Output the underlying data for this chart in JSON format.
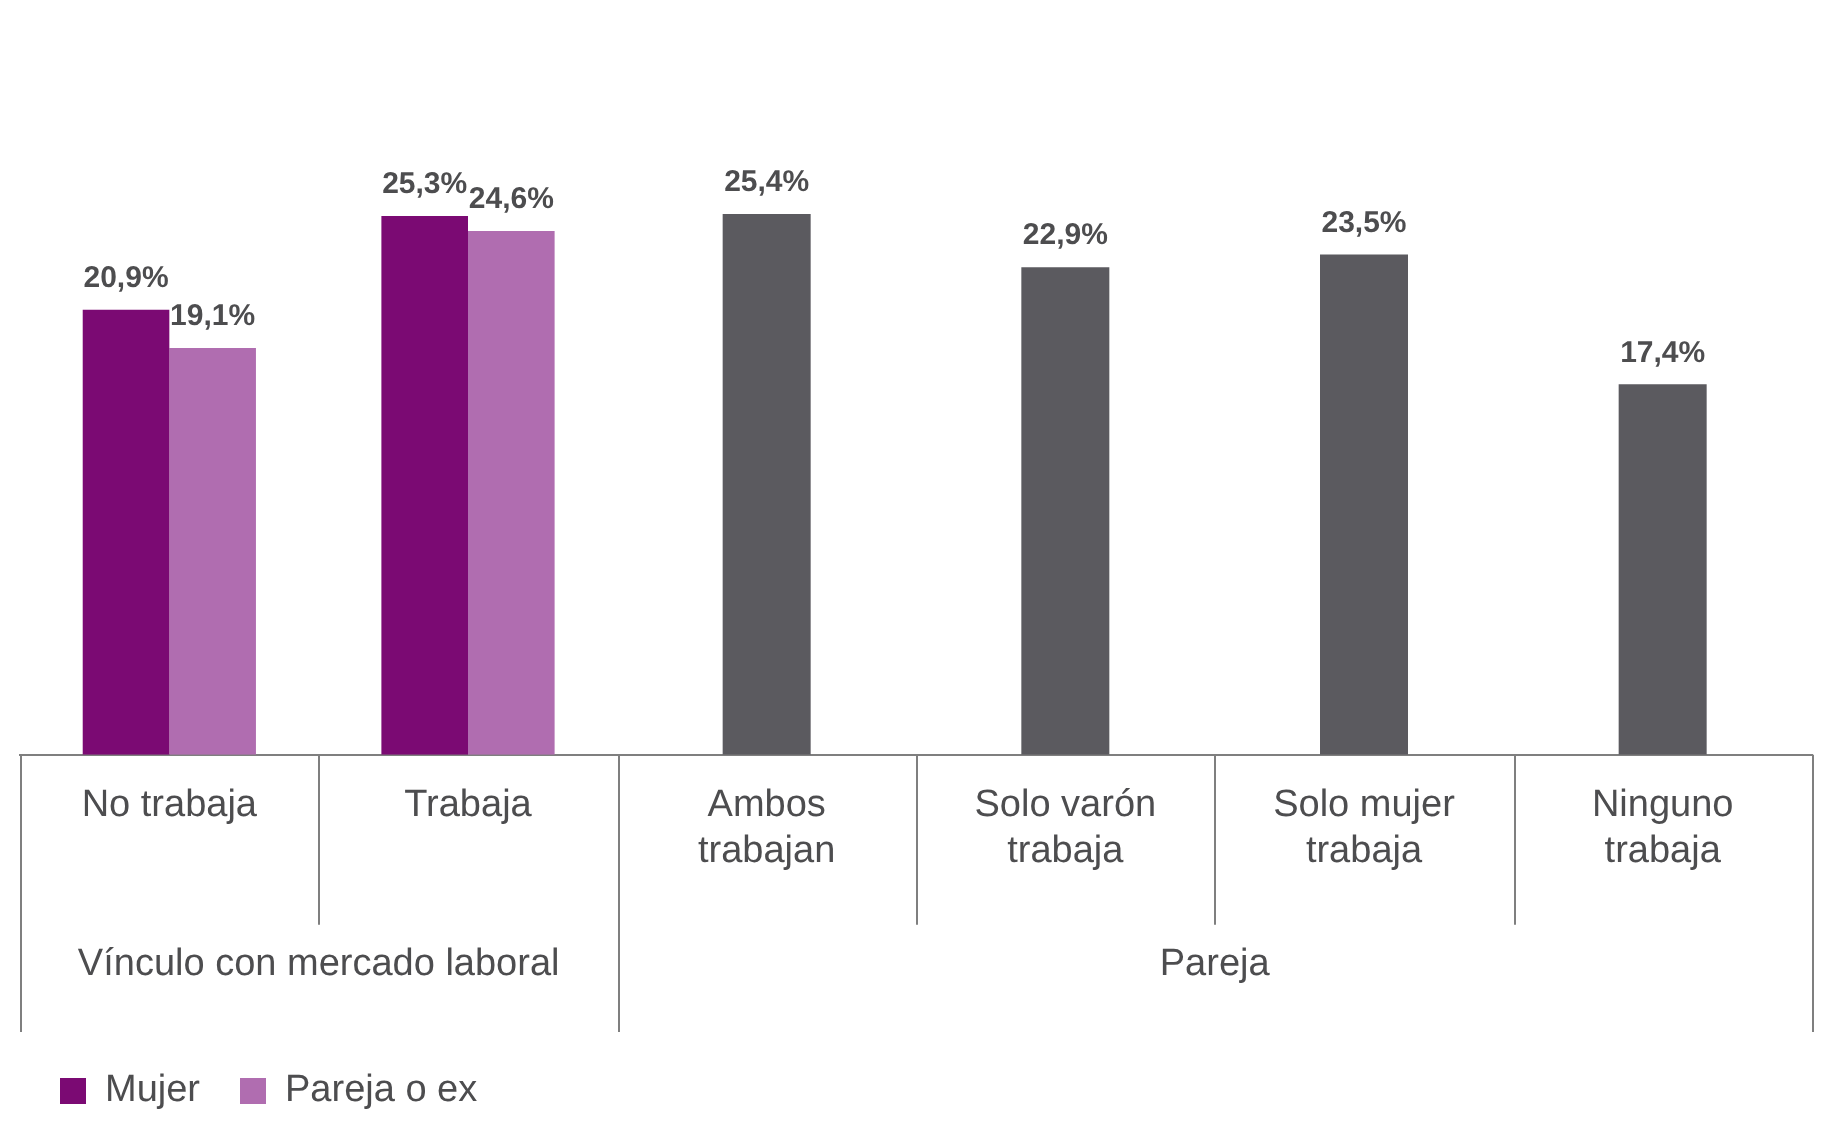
{
  "chart_data": {
    "type": "bar",
    "categories": [
      "No trabaja",
      "Trabaja",
      "Ambos trabajan",
      "Solo varón trabaja",
      "Solo mujer trabaja",
      "Ninguno trabaja"
    ],
    "series": [
      {
        "name": "Mujer",
        "color": "#7b0a73",
        "values": [
          20.9,
          25.3,
          null,
          null,
          null,
          null
        ],
        "value_labels": [
          "20,9%",
          "25,3%",
          null,
          null,
          null,
          null
        ]
      },
      {
        "name": "Pareja o ex",
        "color": "#b06db0",
        "values": [
          19.1,
          24.6,
          null,
          null,
          null,
          null
        ],
        "value_labels": [
          "19,1%",
          "24,6%",
          null,
          null,
          null,
          null
        ]
      },
      {
        "color": "#5b5a5f",
        "values": [
          null,
          null,
          25.4,
          22.9,
          23.5,
          17.4
        ],
        "value_labels": [
          null,
          null,
          "25,4%",
          "22,9%",
          "23,5%",
          "17,4%"
        ]
      }
    ],
    "annotations": [
      "Vínculo con mercado laboral",
      "Pareja"
    ],
    "legend": "bottom left",
    "grid": false
  }
}
